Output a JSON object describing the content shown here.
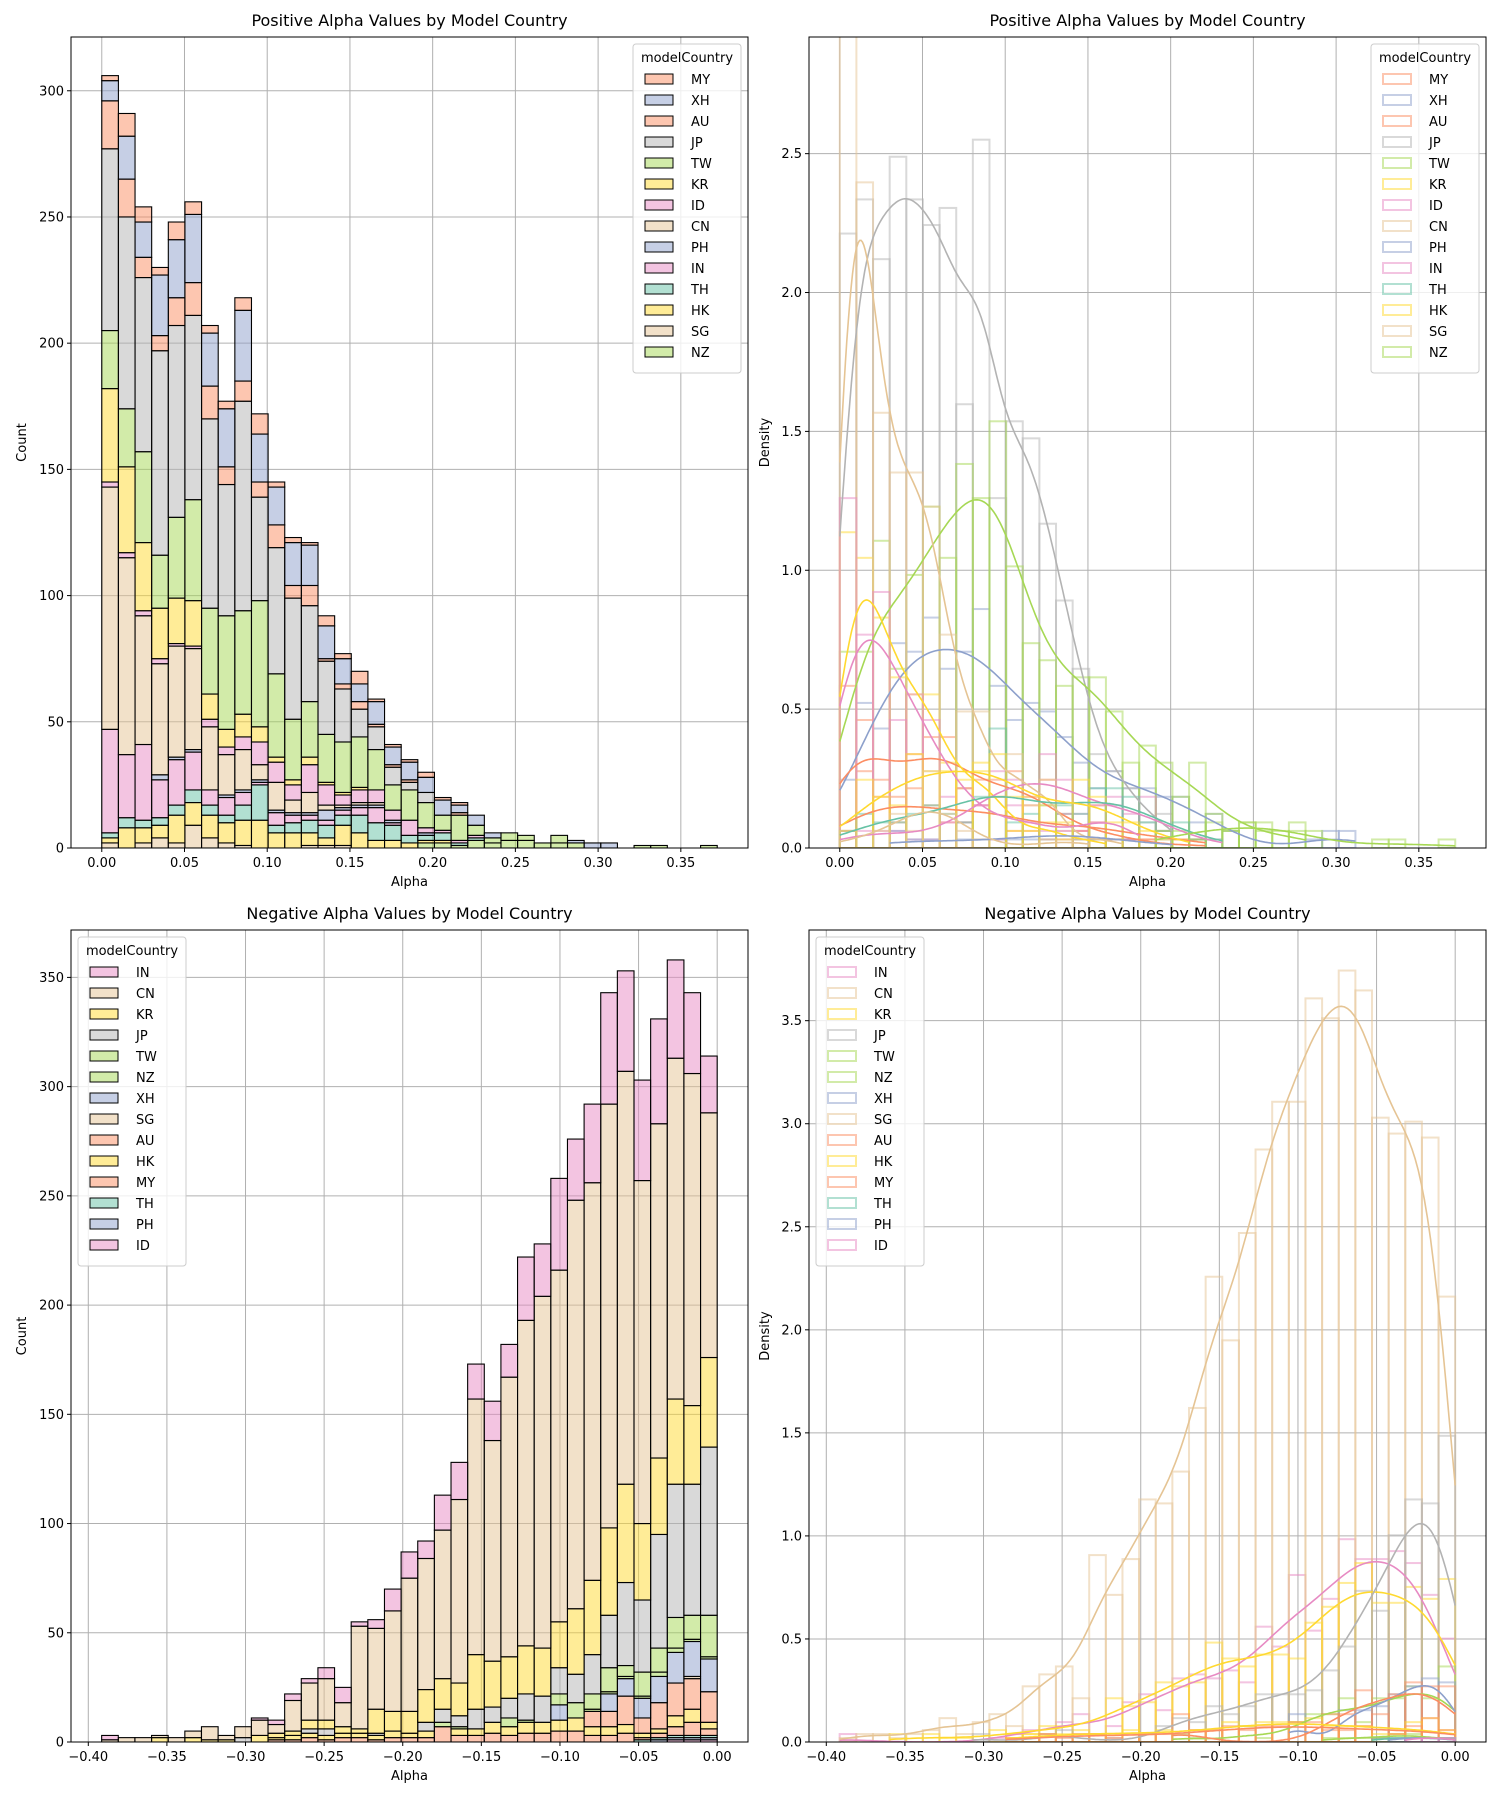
{
  "palette": {
    "MY": "#fc8d62",
    "XH": "#8da0cb",
    "AU": "#fc8d62",
    "JP": "#b3b3b3",
    "TW": "#a6d854",
    "KR": "#ffd92f",
    "ID": "#e78ac3",
    "CN": "#e5c494",
    "PH": "#8da0cb",
    "IN": "#e78ac3",
    "TH": "#66c2a5",
    "HK": "#ffd92f",
    "SG": "#e5c494",
    "NZ": "#a6d854"
  },
  "chart_data": [
    {
      "type": "bar",
      "stacked": true,
      "title": "Positive Alpha Values by Model Country",
      "xlabel": "Alpha",
      "ylabel": "Count",
      "xlim": [
        -0.0186,
        0.3906
      ],
      "ylim": [
        0,
        321.3
      ],
      "xticks": [
        0,
        0.05,
        0.1,
        0.15,
        0.2,
        0.25,
        0.3,
        0.35
      ],
      "xtick_labels": [
        "0.00",
        "0.05",
        "0.10",
        "0.15",
        "0.20",
        "0.25",
        "0.30",
        "0.35"
      ],
      "yticks": [
        0,
        50,
        100,
        150,
        200,
        250,
        300
      ],
      "ytick_labels": [
        "0",
        "50",
        "100",
        "150",
        "200",
        "250",
        "300"
      ],
      "grid": true,
      "legend_title": "modelCountry",
      "legend_position": "upper-right",
      "bin_range": [
        0,
        0.372
      ],
      "bins": 37,
      "series": [
        {
          "name": "MY",
          "values": [
            2,
            9,
            6,
            3,
            7,
            5,
            3,
            3,
            5,
            8,
            2,
            2,
            1,
            4,
            2,
            5,
            1,
            1,
            1,
            2,
            1,
            1
          ]
        },
        {
          "name": "XH",
          "values": [
            8,
            17,
            14,
            24,
            23,
            27,
            21,
            23,
            28,
            19,
            15,
            17,
            16,
            13,
            10,
            7,
            9,
            7,
            7,
            6,
            6,
            3,
            4,
            2,
            0,
            0,
            0,
            0,
            1,
            2,
            2
          ]
        },
        {
          "name": "AU",
          "values": [
            19,
            15,
            8,
            6,
            11,
            13,
            13,
            7,
            8,
            6,
            9,
            5,
            8,
            1,
            2,
            3,
            1,
            1,
            1,
            0,
            0,
            1
          ]
        },
        {
          "name": "JP",
          "values": [
            72,
            76,
            69,
            81,
            76,
            73,
            75,
            52,
            83,
            41,
            50,
            48,
            38,
            29,
            21,
            11,
            9,
            7,
            3,
            4
          ]
        },
        {
          "name": "TW",
          "values": [
            23,
            23,
            36,
            21,
            32,
            40,
            34,
            45,
            41,
            50,
            33,
            24,
            22,
            19,
            20,
            20,
            16,
            10,
            12,
            10,
            6,
            10,
            4,
            2,
            3,
            2,
            0,
            3
          ]
        },
        {
          "name": "KR",
          "values": [
            37,
            34,
            27,
            20,
            18,
            18,
            10,
            7,
            9,
            6,
            2,
            2,
            3,
            1,
            1,
            1
          ]
        },
        {
          "name": "ID",
          "values": [
            2,
            2,
            2,
            2,
            1,
            1,
            3,
            3,
            5,
            9,
            8,
            6,
            11,
            8,
            4,
            5,
            5,
            4,
            6,
            2,
            1,
            1,
            1
          ]
        },
        {
          "name": "CN",
          "values": [
            96,
            78,
            51,
            44,
            44,
            40,
            25,
            16,
            16,
            6,
            11,
            5,
            8,
            2,
            1,
            1,
            1
          ]
        },
        {
          "name": "PH",
          "values": [
            0,
            0,
            0,
            2,
            1,
            1,
            0,
            1,
            1,
            1,
            1,
            1,
            1,
            4,
            1,
            1,
            1,
            1,
            0,
            1
          ]
        },
        {
          "name": "IN",
          "values": [
            41,
            25,
            30,
            15,
            18,
            15,
            6,
            7,
            5,
            1,
            5,
            3,
            2,
            2,
            2,
            3,
            6,
            1
          ]
        },
        {
          "name": "TH",
          "values": [
            2,
            4,
            3,
            3,
            4,
            5,
            4,
            3,
            6,
            14,
            3,
            4,
            5,
            5,
            4,
            7,
            7,
            6,
            3,
            2,
            3,
            1,
            1
          ]
        },
        {
          "name": "HK",
          "values": [
            2,
            8,
            6,
            5,
            11,
            9,
            9,
            8,
            10,
            11,
            6,
            6,
            5,
            3,
            8,
            6,
            3,
            3,
            2,
            1,
            1
          ]
        },
        {
          "name": "SG",
          "values": [
            2,
            0,
            2,
            4,
            2,
            9,
            4,
            2,
            1,
            0,
            0,
            0,
            1,
            1,
            1
          ]
        },
        {
          "name": "NZ",
          "values": [
            0,
            0,
            0,
            0,
            0,
            0,
            0,
            0,
            0,
            0,
            0,
            0,
            0,
            0,
            0,
            0,
            0,
            0,
            0,
            2,
            2,
            1,
            3,
            2,
            3,
            3,
            2,
            2,
            2,
            0,
            0,
            0,
            1,
            1,
            0,
            0,
            1
          ]
        }
      ]
    },
    {
      "type": "histogram-density",
      "stat": "density",
      "kde": true,
      "derived_from_chart": 0,
      "title": "Positive Alpha Values by Model Country",
      "xlabel": "Alpha",
      "ylabel": "Density",
      "xlim": [
        -0.0186,
        0.3906
      ],
      "ylim": [
        0,
        2.92
      ],
      "xticks": [
        0,
        0.05,
        0.1,
        0.15,
        0.2,
        0.25,
        0.3,
        0.35
      ],
      "xtick_labels": [
        "0.00",
        "0.05",
        "0.10",
        "0.15",
        "0.20",
        "0.25",
        "0.30",
        "0.35"
      ],
      "yticks": [
        0,
        0.5,
        1,
        1.5,
        2,
        2.5
      ],
      "ytick_labels": [
        "0.0",
        "0.5",
        "1.0",
        "1.5",
        "2.0",
        "2.5"
      ],
      "grid": true,
      "legend_title": "modelCountry",
      "legend_position": "upper-right"
    },
    {
      "type": "bar",
      "stacked": true,
      "title": "Negative Alpha Values by Model Country",
      "xlabel": "Alpha",
      "ylabel": "Count",
      "xlim": [
        -0.411,
        0.0196
      ],
      "ylim": [
        0,
        371.7
      ],
      "xticks": [
        -0.4,
        -0.35,
        -0.3,
        -0.25,
        -0.2,
        -0.15,
        -0.1,
        -0.05,
        0
      ],
      "xtick_labels": [
        "−0.40",
        "−0.35",
        "−0.30",
        "−0.25",
        "−0.20",
        "−0.15",
        "−0.10",
        "−0.05",
        "0.00"
      ],
      "yticks": [
        0,
        50,
        100,
        150,
        200,
        250,
        300,
        350
      ],
      "ytick_labels": [
        "0",
        "50",
        "100",
        "150",
        "200",
        "250",
        "300",
        "350"
      ],
      "grid": true,
      "legend_title": "modelCountry",
      "legend_position": "upper-left",
      "bin_range": [
        -0.3915,
        0
      ],
      "bins": 37,
      "series": [
        {
          "name": "IN",
          "values": [
            2,
            0,
            0,
            0,
            0,
            0,
            0,
            0,
            0,
            1,
            2,
            3,
            2,
            5,
            7,
            2,
            4,
            10,
            12,
            8,
            16,
            17,
            16,
            18,
            15,
            29,
            24,
            42,
            28,
            36,
            51,
            46,
            46,
            48,
            45,
            37,
            26
          ]
        },
        {
          "name": "CN",
          "values": [
            1,
            2,
            2,
            1,
            2,
            3,
            6,
            2,
            5,
            7,
            4,
            14,
            17,
            19,
            11,
            47,
            37,
            46,
            61,
            60,
            68,
            84,
            117,
            101,
            128,
            149,
            161,
            161,
            187,
            182,
            194,
            189,
            157,
            153,
            156,
            152,
            112
          ]
        },
        {
          "name": "KR",
          "values": [
            0,
            0,
            0,
            2,
            0,
            2,
            1,
            1,
            0,
            3,
            2,
            2,
            4,
            4,
            3,
            2,
            11,
            9,
            10,
            15,
            14,
            15,
            25,
            21,
            19,
            22,
            22,
            21,
            30,
            34,
            40,
            45,
            35,
            35,
            39,
            36,
            41
          ]
        },
        {
          "name": "JP",
          "values": [
            0,
            0,
            0,
            0,
            0,
            0,
            0,
            0,
            2,
            0,
            0,
            0,
            2,
            3,
            0,
            0,
            1,
            0,
            0,
            4,
            6,
            5,
            9,
            7,
            9,
            12,
            12,
            12,
            13,
            18,
            24,
            38,
            33,
            52,
            61,
            60,
            77
          ]
        },
        {
          "name": "TW",
          "values": [
            0,
            0,
            0,
            0,
            0,
            0,
            0,
            0,
            0,
            0,
            0,
            0,
            0,
            0,
            0,
            0,
            0,
            0,
            0,
            0,
            2,
            1,
            0,
            0,
            4,
            1,
            0,
            5,
            7,
            7,
            11,
            5,
            11,
            11,
            14,
            11,
            19
          ]
        },
        {
          "name": "NZ",
          "values": [
            0,
            0,
            0,
            0,
            0,
            0,
            0,
            0,
            0,
            0,
            0,
            0,
            0,
            0,
            0,
            0,
            0,
            0,
            0,
            0,
            0,
            0,
            0,
            0,
            0,
            0,
            0,
            0,
            0,
            1,
            1,
            1,
            1,
            2,
            2,
            1,
            1
          ]
        },
        {
          "name": "XH",
          "values": [
            0,
            0,
            0,
            0,
            0,
            0,
            0,
            0,
            0,
            0,
            0,
            0,
            0,
            0,
            0,
            0,
            0,
            0,
            0,
            0,
            0,
            0,
            0,
            0,
            0,
            0,
            0,
            7,
            0,
            0,
            8,
            8,
            9,
            12,
            14,
            16,
            15
          ]
        },
        {
          "name": "SG",
          "values": [
            0,
            0,
            0,
            0,
            0,
            0,
            0,
            0,
            0,
            0,
            0,
            0,
            0,
            0,
            0,
            0,
            0,
            0,
            0,
            0,
            0,
            0,
            0,
            0,
            0,
            0,
            0,
            0,
            0,
            0,
            0,
            0,
            0,
            0,
            0,
            1,
            0
          ]
        },
        {
          "name": "AU",
          "values": [
            0,
            0,
            0,
            0,
            0,
            0,
            0,
            0,
            0,
            0,
            0,
            0,
            0,
            0,
            0,
            0,
            0,
            0,
            0,
            0,
            7,
            0,
            0,
            0,
            0,
            0,
            0,
            0,
            0,
            7,
            7,
            13,
            7,
            12,
            15,
            14,
            14
          ]
        },
        {
          "name": "HK",
          "values": [
            0,
            0,
            0,
            0,
            0,
            0,
            0,
            0,
            0,
            0,
            1,
            2,
            2,
            2,
            2,
            2,
            2,
            3,
            2,
            3,
            0,
            3,
            3,
            5,
            4,
            5,
            5,
            5,
            6,
            4,
            4,
            4,
            2,
            2,
            5,
            6,
            3
          ]
        },
        {
          "name": "MY",
          "values": [
            0,
            0,
            0,
            0,
            0,
            0,
            0,
            0,
            0,
            0,
            1,
            1,
            2,
            1,
            2,
            2,
            1,
            2,
            2,
            2,
            0,
            3,
            3,
            4,
            3,
            4,
            4,
            5,
            5,
            3,
            3,
            4,
            1,
            2,
            4,
            6,
            3
          ]
        },
        {
          "name": "TH",
          "values": [
            0,
            0,
            0,
            0,
            0,
            0,
            0,
            0,
            0,
            0,
            0,
            0,
            0,
            0,
            0,
            0,
            0,
            0,
            0,
            0,
            0,
            0,
            0,
            0,
            0,
            0,
            0,
            0,
            0,
            0,
            0,
            0,
            1,
            1,
            1,
            1,
            1
          ]
        },
        {
          "name": "PH",
          "values": [
            0,
            0,
            0,
            0,
            0,
            0,
            0,
            0,
            0,
            0,
            0,
            0,
            0,
            0,
            0,
            0,
            0,
            0,
            0,
            0,
            0,
            0,
            0,
            0,
            0,
            0,
            0,
            0,
            0,
            0,
            0,
            0,
            0,
            1,
            1,
            1,
            1
          ]
        },
        {
          "name": "ID",
          "values": [
            0,
            0,
            0,
            0,
            0,
            0,
            0,
            0,
            0,
            0,
            0,
            0,
            0,
            0,
            0,
            0,
            0,
            0,
            0,
            0,
            0,
            0,
            0,
            0,
            0,
            0,
            0,
            0,
            0,
            0,
            0,
            0,
            0,
            0,
            1,
            1,
            1
          ]
        }
      ]
    },
    {
      "type": "histogram-density",
      "stat": "density",
      "kde": true,
      "derived_from_chart": 2,
      "title": "Negative Alpha Values by Model Country",
      "xlabel": "Alpha",
      "ylabel": "Density",
      "xlim": [
        -0.411,
        0.0196
      ],
      "ylim": [
        0,
        3.94
      ],
      "xticks": [
        -0.4,
        -0.35,
        -0.3,
        -0.25,
        -0.2,
        -0.15,
        -0.1,
        -0.05,
        0
      ],
      "xtick_labels": [
        "−0.40",
        "−0.35",
        "−0.30",
        "−0.25",
        "−0.20",
        "−0.15",
        "−0.10",
        "−0.05",
        "0.00"
      ],
      "yticks": [
        0,
        0.5,
        1,
        1.5,
        2,
        2.5,
        3,
        3.5
      ],
      "ytick_labels": [
        "0.0",
        "0.5",
        "1.0",
        "1.5",
        "2.0",
        "2.5",
        "3.0",
        "3.5"
      ],
      "grid": true,
      "legend_title": "modelCountry",
      "legend_position": "upper-left"
    }
  ]
}
